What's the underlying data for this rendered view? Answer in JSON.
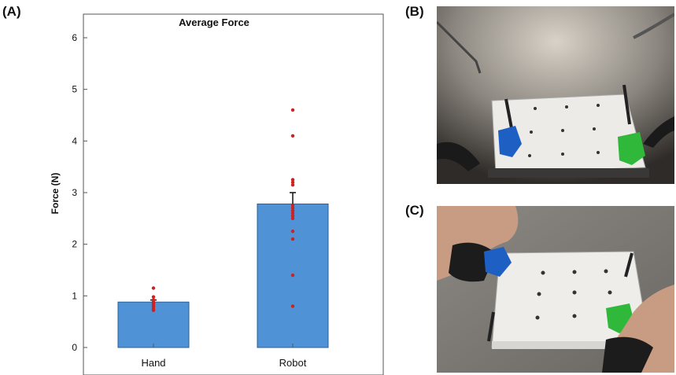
{
  "panels": {
    "a_label": "(A)",
    "b_label": "(B)",
    "c_label": "(C)"
  },
  "chart_data": {
    "type": "bar",
    "title": "Average Force",
    "xlabel": "",
    "ylabel": "Force (N)",
    "ylim": [
      0,
      6
    ],
    "yticks": [
      0,
      1,
      2,
      3,
      4,
      5,
      6
    ],
    "grid": false,
    "categories": [
      "Hand",
      "Robot"
    ],
    "values": [
      0.88,
      2.78
    ],
    "error_upper": [
      0.04,
      0.22
    ],
    "points": [
      [
        1.15,
        0.98,
        0.92,
        0.88,
        0.85,
        0.82,
        0.79,
        0.75,
        0.72
      ],
      [
        4.6,
        4.1,
        3.25,
        3.2,
        3.15,
        2.75,
        2.7,
        2.65,
        2.6,
        2.55,
        2.5,
        2.25,
        2.1,
        1.4,
        0.8
      ]
    ],
    "bar_color": "#4f93d6",
    "point_color": "#cc2222"
  },
  "photos": {
    "b_subject": "surgical-robot-peg-board-photo",
    "c_subject": "hand-peg-board-photo",
    "peg_colors": [
      "#1e5fc4",
      "#2fb83a"
    ]
  }
}
